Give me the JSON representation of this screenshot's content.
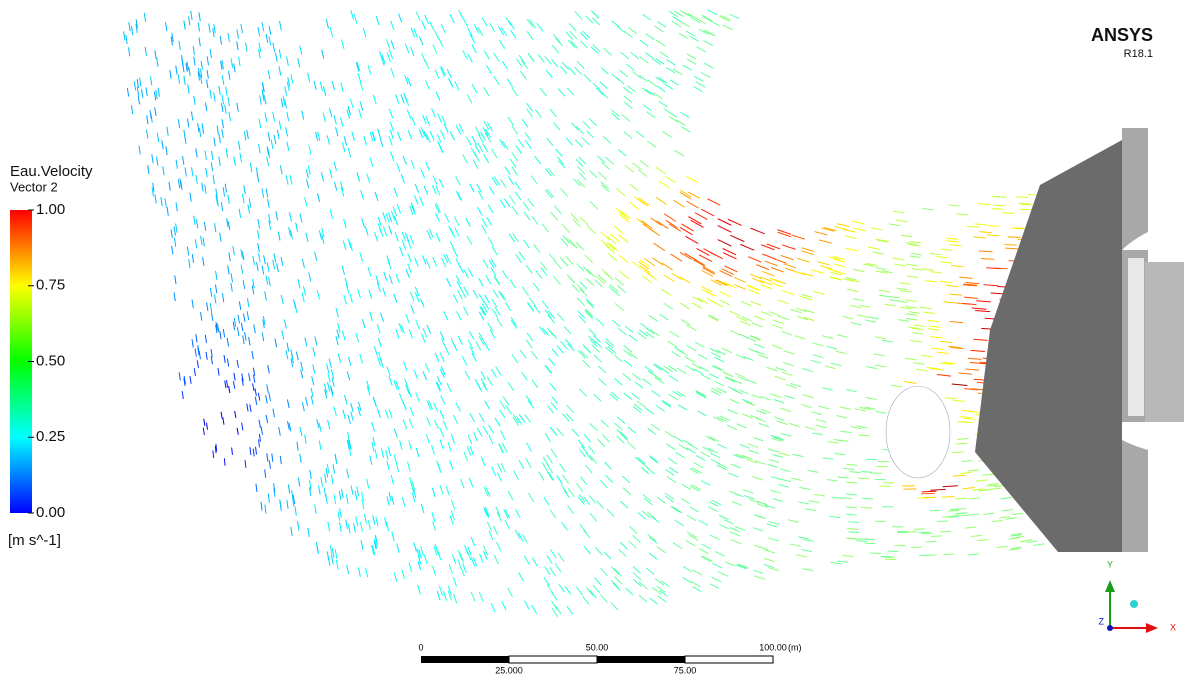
{
  "legend": {
    "title": "Eau.Velocity",
    "subtitle": "Vector 2",
    "ticks": [
      {
        "value": 1,
        "label": "1.00"
      },
      {
        "value": 0.75,
        "label": "0.75"
      },
      {
        "value": 0.5,
        "label": "0.50"
      },
      {
        "value": 0.25,
        "label": "0.25"
      },
      {
        "value": 0,
        "label": "0.00"
      }
    ],
    "unit": "[m s^-1]"
  },
  "scale_bar": {
    "top_labels": [
      "0",
      "50.00",
      "100.00"
    ],
    "unit": "(m)",
    "bottom_labels": [
      "25.000",
      "75.00"
    ]
  },
  "logo": {
    "name": "ANSYS",
    "version": "R18.1"
  },
  "triad": {
    "y": "Y",
    "x": "X",
    "z": "Z"
  }
}
